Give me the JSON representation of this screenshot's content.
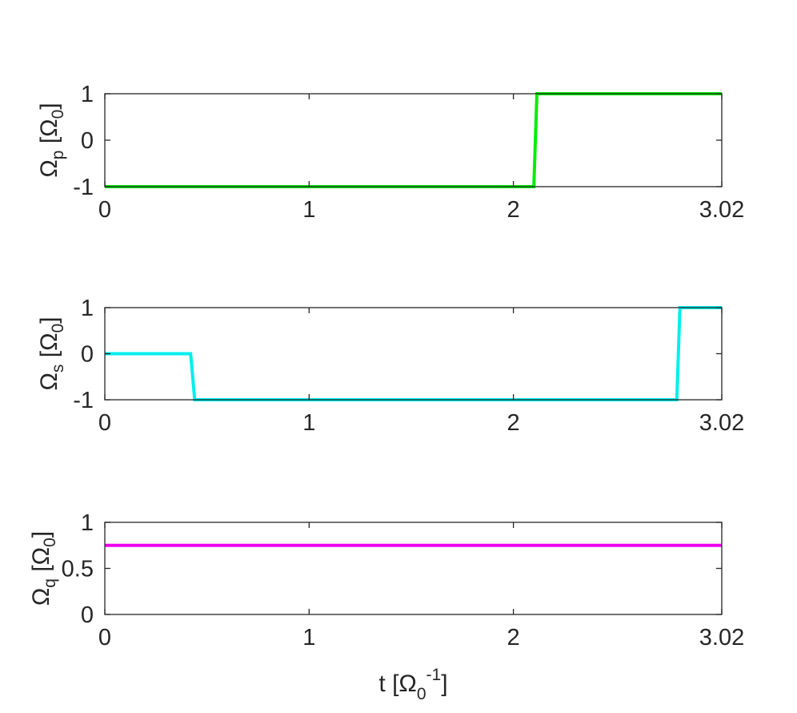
{
  "chart_data": [
    {
      "type": "line",
      "ylabel": {
        "main": "Ω",
        "sub": "p",
        "bracket_open": " [Ω",
        "bracket_sub": "0",
        "bracket_close": "]"
      },
      "xlim": [
        0,
        3.02
      ],
      "ylim": [
        -1,
        1
      ],
      "xticks": [
        0,
        1,
        2,
        3.02
      ],
      "xtick_labels": [
        "0",
        "1",
        "2",
        "3.02"
      ],
      "yticks": [
        -1,
        0,
        1
      ],
      "ytick_labels": [
        "-1",
        "0",
        "1"
      ],
      "series": [
        {
          "color": "#00ee00",
          "x": [
            0,
            2.1,
            2.115,
            3.02
          ],
          "y": [
            -1,
            -1,
            1,
            1
          ]
        }
      ]
    },
    {
      "type": "line",
      "ylabel": {
        "main": "Ω",
        "sub": "s",
        "bracket_open": " [Ω",
        "bracket_sub": "0",
        "bracket_close": "]"
      },
      "xlim": [
        0,
        3.02
      ],
      "ylim": [
        -1,
        1
      ],
      "xticks": [
        0,
        1,
        2,
        3.02
      ],
      "xtick_labels": [
        "0",
        "1",
        "2",
        "3.02"
      ],
      "yticks": [
        -1,
        0,
        1
      ],
      "ytick_labels": [
        "-1",
        "0",
        "1"
      ],
      "series": [
        {
          "color": "#00eeee",
          "x": [
            0,
            0.42,
            0.44,
            2.8,
            2.815,
            3.02
          ],
          "y": [
            0,
            0,
            -1,
            -1,
            1,
            1
          ]
        }
      ]
    },
    {
      "type": "line",
      "ylabel": {
        "main": "Ω",
        "sub": "q",
        "bracket_open": " [Ω",
        "bracket_sub": "0",
        "bracket_close": "]"
      },
      "xlabel": {
        "main": "t [Ω",
        "sub": "0",
        "sup": "-1",
        "close": "]"
      },
      "xlim": [
        0,
        3.02
      ],
      "ylim": [
        0,
        1
      ],
      "xticks": [
        0,
        1,
        2,
        3.02
      ],
      "xtick_labels": [
        "0",
        "1",
        "2",
        "3.02"
      ],
      "yticks": [
        0,
        0.5,
        1
      ],
      "ytick_labels": [
        "0",
        "0.5",
        "1"
      ],
      "series": [
        {
          "color": "#ee00ee",
          "x": [
            0,
            3.02
          ],
          "y": [
            0.75,
            0.75
          ]
        }
      ]
    }
  ]
}
